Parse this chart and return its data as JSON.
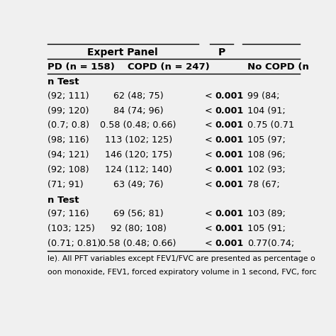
{
  "title_row": "Expert Panel",
  "p_header": "P",
  "col_headers_1": "PD (n = 158)",
  "col_headers_2": "COPD (n = 247)",
  "col_headers_4": "No COPD (n",
  "section1_header": "n Test",
  "section2_header": "n Test",
  "rows_section1": [
    [
      "(92; 111)",
      "62 (48; 75)",
      "99 (84;"
    ],
    [
      "(99; 120)",
      "84 (74; 96)",
      "104 (91;"
    ],
    [
      "(0.7; 0.8)",
      "0.58 (0.48; 0.66)",
      "0.75 (0.71"
    ],
    [
      "(98; 116)",
      "113 (102; 125)",
      "105 (97;"
    ],
    [
      "(94; 121)",
      "146 (120; 175)",
      "108 (96;"
    ],
    [
      "(92; 108)",
      "124 (112; 140)",
      "102 (93;"
    ],
    [
      "(71; 91)",
      "63 (49; 76)",
      "78 (67;"
    ]
  ],
  "rows_section2": [
    [
      "(97; 116)",
      "69 (56; 81)",
      "103 (89;"
    ],
    [
      "(103; 125)",
      "92 (80; 108)",
      "105 (91;"
    ],
    [
      "(0.71; 0.81)",
      "0.58 (0.48; 0.66)",
      "0.77(0.74;"
    ]
  ],
  "footer1": "le). All PFT variables except FEV1/FVC are presented as percentage o",
  "footer2": "oon monoxide, FEV1, forced expiratory volume in 1 second, FVC, forc",
  "bg_color": "#f0f0f0",
  "text_color": "#000000",
  "figsize": [
    4.74,
    4.74
  ],
  "dpi": 100
}
